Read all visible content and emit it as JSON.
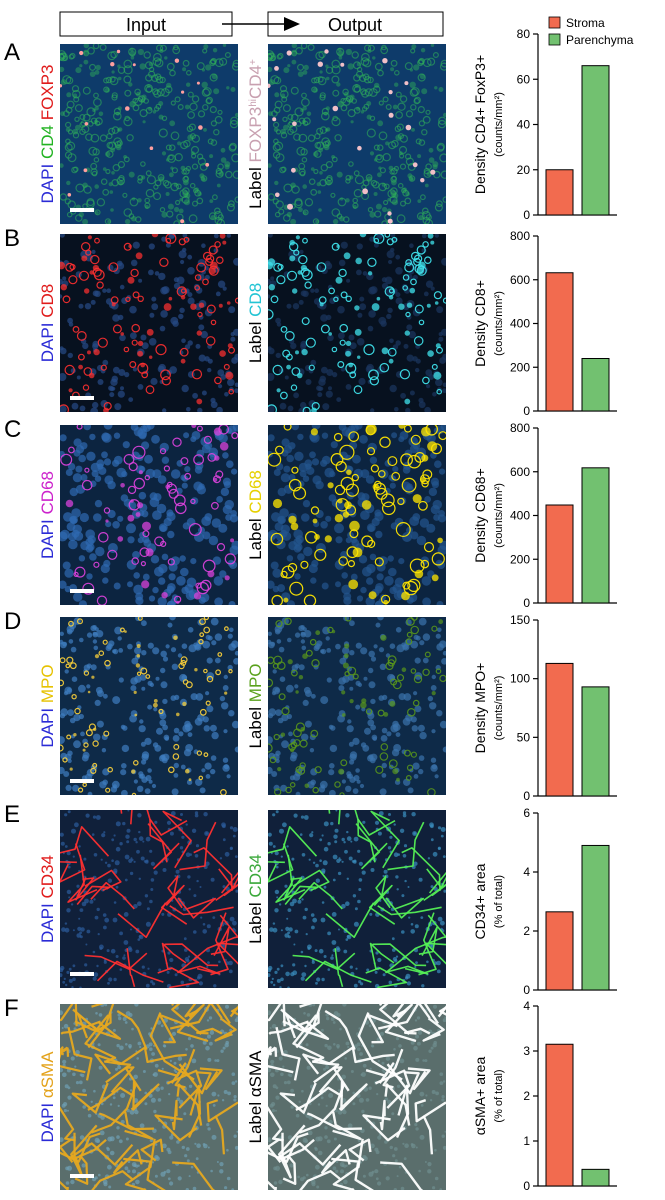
{
  "header": {
    "input_label": "Input",
    "output_label": "Output"
  },
  "legend": [
    {
      "name": "Stroma",
      "color": "#f26b4f"
    },
    {
      "name": "Parenchyma",
      "color": "#72c170"
    }
  ],
  "panels": [
    {
      "letter": "A",
      "input_stain": [
        [
          "DAPI",
          "#2b2bd6"
        ],
        [
          " CD4",
          "#22b322"
        ],
        [
          " FOXP3",
          "#e01b1b"
        ]
      ],
      "output_label": [
        [
          "Label ",
          "#000000"
        ],
        [
          "FOXP3",
          "#c8a0b0"
        ],
        [
          "hi",
          "#c8a0b0",
          "sup"
        ],
        [
          "CD4",
          "#c8a0b0"
        ],
        [
          "+",
          "#c8a0b0",
          "sup"
        ]
      ],
      "theme": "cd4",
      "chart_data": {
        "type": "bar",
        "categories": [
          "Stroma",
          "Parenchyma"
        ],
        "values": [
          20,
          66
        ],
        "ylabel": "Density CD4+ FoxP3+",
        "ylabel_unit": "(counts/mm²)",
        "ylim": [
          0,
          80
        ],
        "yticks": [
          0,
          20,
          40,
          60,
          80
        ]
      }
    },
    {
      "letter": "B",
      "input_stain": [
        [
          "DAPI",
          "#2b2bd6"
        ],
        [
          " CD8",
          "#e01b1b"
        ]
      ],
      "output_label": [
        [
          "Label ",
          "#000000"
        ],
        [
          "CD8",
          "#22c4d4"
        ]
      ],
      "theme": "cd8",
      "chart_data": {
        "type": "bar",
        "categories": [
          "Stroma",
          "Parenchyma"
        ],
        "values": [
          632,
          240
        ],
        "ylabel": "Density CD8+",
        "ylabel_unit": "(counts/mm²)",
        "ylim": [
          0,
          800
        ],
        "yticks": [
          0,
          200,
          400,
          600,
          800
        ]
      }
    },
    {
      "letter": "C",
      "input_stain": [
        [
          "DAPI",
          "#2b2bd6"
        ],
        [
          " CD68",
          "#cc22cc"
        ]
      ],
      "output_label": [
        [
          "Label ",
          "#000000"
        ],
        [
          "CD68",
          "#e6d000"
        ]
      ],
      "theme": "cd68",
      "chart_data": {
        "type": "bar",
        "categories": [
          "Stroma",
          "Parenchyma"
        ],
        "values": [
          448,
          618
        ],
        "ylabel": "Density CD68+",
        "ylabel_unit": "(counts/mm²)",
        "ylim": [
          0,
          800
        ],
        "yticks": [
          0,
          200,
          400,
          600,
          800
        ]
      }
    },
    {
      "letter": "D",
      "input_stain": [
        [
          "DAPI",
          "#2b2bd6"
        ],
        [
          " MPO",
          "#e6c200"
        ]
      ],
      "output_label": [
        [
          "Label ",
          "#000000"
        ],
        [
          "MPO",
          "#5aa11c"
        ]
      ],
      "theme": "mpo",
      "chart_data": {
        "type": "bar",
        "categories": [
          "Stroma",
          "Parenchyma"
        ],
        "values": [
          113,
          93
        ],
        "ylabel": "Density MPO+",
        "ylabel_unit": "(counts/mm²)",
        "ylim": [
          0,
          150
        ],
        "yticks": [
          0,
          50,
          100,
          150
        ]
      }
    },
    {
      "letter": "E",
      "input_stain": [
        [
          "DAPI",
          "#2b2bd6"
        ],
        [
          " CD34",
          "#e01b1b"
        ]
      ],
      "output_label": [
        [
          "Label ",
          "#000000"
        ],
        [
          "CD34",
          "#3aa83a"
        ]
      ],
      "theme": "cd34",
      "chart_data": {
        "type": "bar",
        "categories": [
          "Stroma",
          "Parenchyma"
        ],
        "values": [
          2.65,
          4.9
        ],
        "ylabel": "CD34+ area",
        "ylabel_unit": "(% of total)",
        "ylim": [
          0,
          6
        ],
        "yticks": [
          0,
          2,
          4,
          6
        ]
      }
    },
    {
      "letter": "F",
      "input_stain": [
        [
          "DAPI",
          "#2b2bd6"
        ],
        [
          " αSMA",
          "#e3a21a"
        ]
      ],
      "output_label": [
        [
          "Label αSMA",
          "#000000"
        ]
      ],
      "theme": "sma",
      "chart_data": {
        "type": "bar",
        "categories": [
          "Stroma",
          "Parenchyma"
        ],
        "values": [
          3.15,
          0.37
        ],
        "ylabel": "αSMA+ area",
        "ylabel_unit": "(% of total)",
        "ylim": [
          0,
          4
        ],
        "yticks": [
          0,
          1,
          2,
          3,
          4
        ]
      }
    }
  ]
}
